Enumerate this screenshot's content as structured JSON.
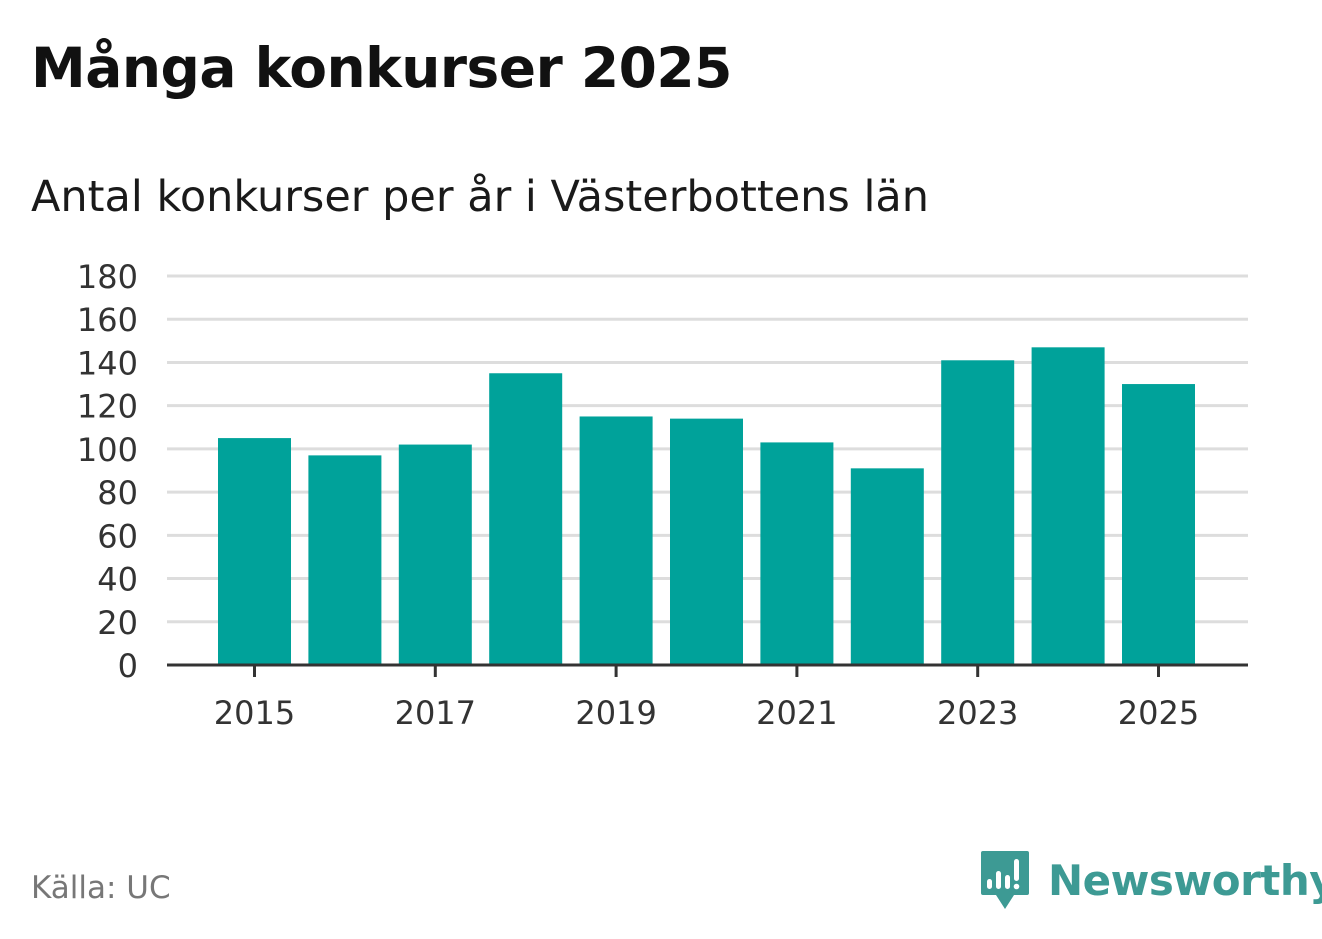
{
  "title": "Många konkurser 2025",
  "subtitle": "Antal konkurser per år i Västerbottens län",
  "source": "Källa: UC",
  "brand": {
    "name": "Newsworthy",
    "color": "#3d9a94",
    "icon": "newsworthy-logo-icon"
  },
  "colors": {
    "bar": "#00a29a",
    "grid": "#dddddd",
    "axis": "#333333",
    "tick_text": "#333333"
  },
  "chart_data": {
    "type": "bar",
    "categories": [
      "2015",
      "2016",
      "2017",
      "2018",
      "2019",
      "2020",
      "2021",
      "2022",
      "2023",
      "2024",
      "2025"
    ],
    "values": [
      105,
      97,
      102,
      135,
      115,
      114,
      103,
      91,
      141,
      147,
      130
    ],
    "x_tick_labels": [
      "2015",
      "2017",
      "2019",
      "2021",
      "2023",
      "2025"
    ],
    "y_ticks": [
      0,
      20,
      40,
      60,
      80,
      100,
      120,
      140,
      160,
      180
    ],
    "ylim": [
      0,
      180
    ],
    "grid": true,
    "legend": "none"
  }
}
